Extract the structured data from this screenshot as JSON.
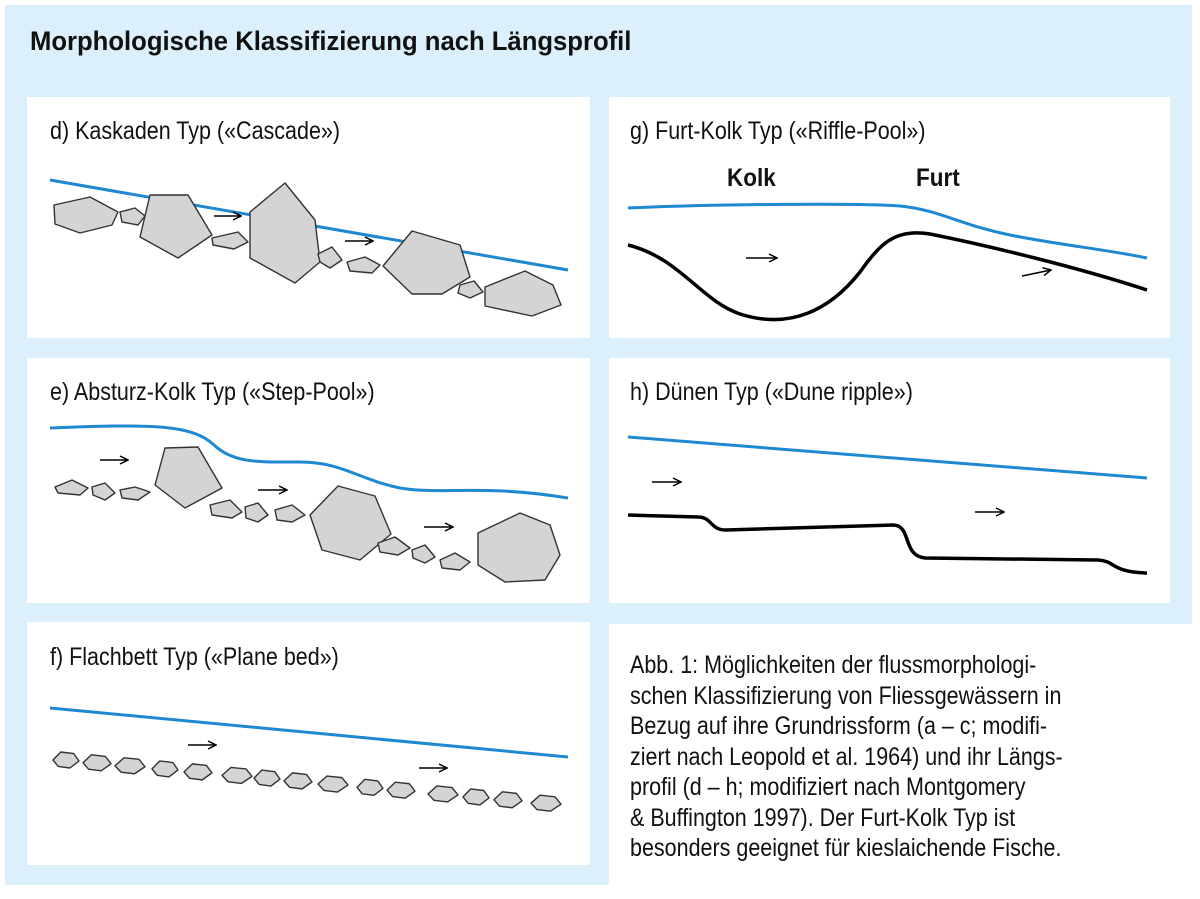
{
  "title": "Morphologische Klassifizierung nach Längsprofil",
  "panels": {
    "d": {
      "label": "d) Kaskaden Typ («Cascade»)"
    },
    "e": {
      "label": "e) Absturz-Kolk Typ («Step-Pool»)"
    },
    "f": {
      "label": "f) Flachbett Typ («Plane bed»)"
    },
    "g": {
      "label": "g) Furt-Kolk Typ («Riffle-Pool»)",
      "kolk": "Kolk",
      "furt": "Furt"
    },
    "h": {
      "label": "h) Dünen Typ («Dune ripple»)"
    }
  },
  "caption": [
    "Abb. 1: Möglichkeiten der flussmorphologi-",
    "schen Klassifizierung von Fliessgewässern in",
    "Bezug auf ihre Grundrissform (a – c; modifi-",
    "ziert nach Leopold et al. 1964) und ihr Längs-",
    "profil (d – h; modifiziert nach Montgomery",
    "& Buffington 1997). Der Furt-Kolk Typ ist",
    "besonders geeignet für kieslaichende Fische."
  ],
  "colors": {
    "background": "#dcf0fb",
    "water_line": "#1e88d0",
    "rock_fill": "#d4d4d4",
    "bed_line": "#000000"
  }
}
